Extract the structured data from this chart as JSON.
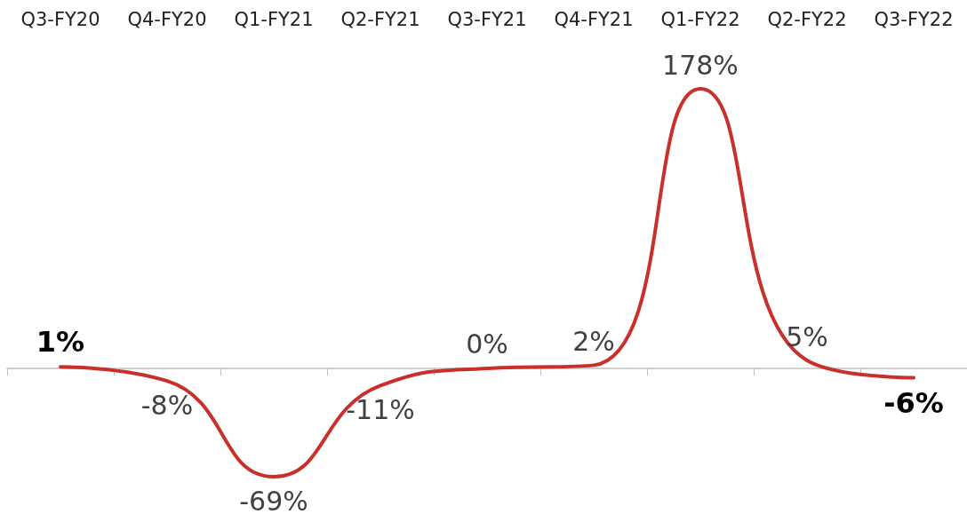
{
  "chart_data": {
    "type": "line",
    "categories": [
      "Q3-FY20",
      "Q4-FY20",
      "Q1-FY21",
      "Q2-FY21",
      "Q3-FY21",
      "Q4-FY21",
      "Q1-FY22",
      "Q2-FY22",
      "Q3-FY22"
    ],
    "series": [
      {
        "color": "#c8312b",
        "values": [
          1,
          -8,
          -69,
          -11,
          0,
          2,
          178,
          5,
          -6
        ],
        "value_labels": [
          "1%",
          "-8%",
          "-69%",
          "-11%",
          "0%",
          "2%",
          "178%",
          "5%",
          "-6%"
        ]
      }
    ],
    "marker": "none",
    "line_style": "solid",
    "grid": false
  }
}
